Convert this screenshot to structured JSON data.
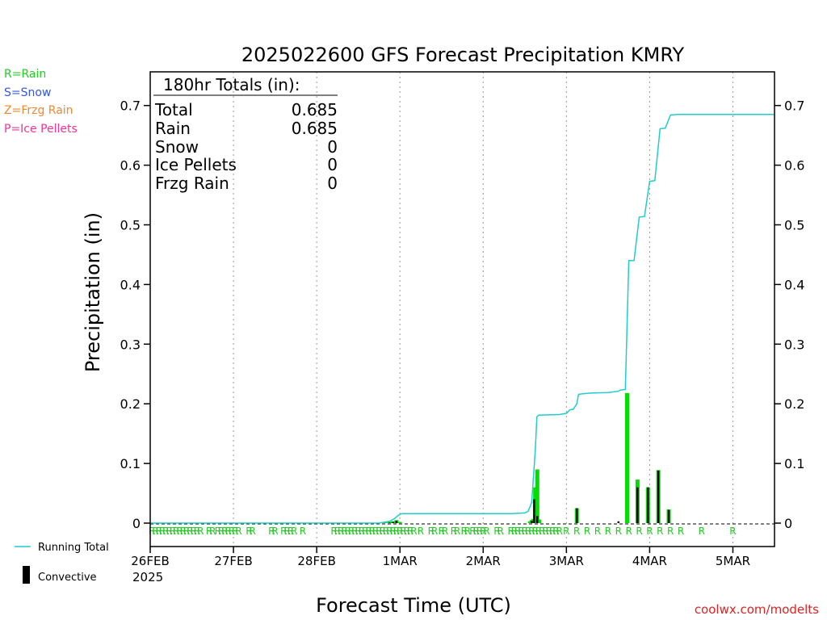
{
  "chart_data": {
    "type": "bar",
    "title": "2025022600 GFS Forecast Precipitation KMRY",
    "xlabel": "Forecast Time (UTC)",
    "ylabel": "Precipitation (in)",
    "ylim": [
      0,
      0.75
    ],
    "yticks": [
      "0",
      "0.1",
      "0.2",
      "0.3",
      "0.4",
      "0.5",
      "0.6",
      "0.7"
    ],
    "xticks": [
      {
        "label": "26FEB",
        "hour": 0
      },
      {
        "label": "27FEB",
        "hour": 24
      },
      {
        "label": "28FEB",
        "hour": 48
      },
      {
        "label": "1MAR",
        "hour": 72
      },
      {
        "label": "2MAR",
        "hour": 96
      },
      {
        "label": "3MAR",
        "hour": 120
      },
      {
        "label": "4MAR",
        "hour": 144
      },
      {
        "label": "5MAR",
        "hour": 168
      }
    ],
    "x_year_label": "2025",
    "xlim_hours": [
      0,
      180
    ],
    "grid": "vertical dotted",
    "ptype_legend": [
      {
        "code": "R",
        "text": "R=Rain",
        "color": "#22cc22"
      },
      {
        "code": "S",
        "text": "S=Snow",
        "color": "#3355ee"
      },
      {
        "code": "Z",
        "text": "Z=Frzg Rain",
        "color": "#ee8833"
      },
      {
        "code": "P",
        "text": "P=Ice Pellets",
        "color": "#ee3399"
      }
    ],
    "totals": {
      "header": "180hr Totals (in):",
      "rows": [
        {
          "label": "Total",
          "value": "0.685"
        },
        {
          "label": "Rain",
          "value": "0.685"
        },
        {
          "label": "Snow",
          "value": "0"
        },
        {
          "label": "Ice Pellets",
          "value": "0"
        },
        {
          "label": "Frzg Rain",
          "value": "0"
        }
      ]
    },
    "legend": [
      {
        "name": "Running Total",
        "color": "#22cccc"
      },
      {
        "name": "Convective",
        "color": "#000000"
      }
    ],
    "series": [
      {
        "name": "Running Total",
        "color": "#22cccc",
        "points": [
          [
            0,
            0
          ],
          [
            66,
            0
          ],
          [
            69,
            0.003
          ],
          [
            70.5,
            0.008
          ],
          [
            71.5,
            0.013
          ],
          [
            72.5,
            0.016
          ],
          [
            104,
            0.016
          ],
          [
            108,
            0.017
          ],
          [
            109,
            0.02
          ],
          [
            110,
            0.035
          ],
          [
            111,
            0.12
          ],
          [
            111.5,
            0.178
          ],
          [
            112,
            0.181
          ],
          [
            118,
            0.182
          ],
          [
            120,
            0.184
          ],
          [
            121,
            0.19
          ],
          [
            122,
            0.191
          ],
          [
            123,
            0.2
          ],
          [
            123.5,
            0.216
          ],
          [
            125,
            0.217
          ],
          [
            127,
            0.218
          ],
          [
            132,
            0.219
          ],
          [
            135,
            0.221
          ],
          [
            135.5,
            0.223
          ],
          [
            137,
            0.224
          ],
          [
            138,
            0.44
          ],
          [
            139.5,
            0.44
          ],
          [
            141,
            0.513
          ],
          [
            142.5,
            0.514
          ],
          [
            144,
            0.573
          ],
          [
            145.5,
            0.574
          ],
          [
            147,
            0.661
          ],
          [
            148.5,
            0.662
          ],
          [
            150,
            0.684
          ],
          [
            152,
            0.685
          ],
          [
            180,
            0.685
          ]
        ]
      },
      {
        "name": "Precipitation",
        "color": "#00dd00",
        "bars": [
          [
            68,
            0.001
          ],
          [
            69,
            0.002
          ],
          [
            70,
            0.003
          ],
          [
            71,
            0.005
          ],
          [
            72,
            0.002
          ],
          [
            109.5,
            0.003
          ],
          [
            110,
            0.005
          ],
          [
            110.5,
            0.007
          ],
          [
            111,
            0.06
          ],
          [
            111.6,
            0.09
          ],
          [
            112.2,
            0.006
          ],
          [
            123,
            0.025
          ],
          [
            137.5,
            0.218
          ],
          [
            140.5,
            0.073
          ],
          [
            143.5,
            0.06
          ],
          [
            146.5,
            0.089
          ],
          [
            149.5,
            0.023
          ]
        ]
      },
      {
        "name": "Convective",
        "color": "#000000",
        "bars": [
          [
            69,
            0.001
          ],
          [
            70,
            0.002
          ],
          [
            71,
            0.004
          ],
          [
            110,
            0.004
          ],
          [
            110.7,
            0.04
          ],
          [
            111.6,
            0.012
          ],
          [
            123,
            0.025
          ],
          [
            135,
            0.003
          ],
          [
            140.5,
            0.06
          ],
          [
            143.5,
            0.06
          ],
          [
            146.5,
            0.088
          ],
          [
            149.5,
            0.022
          ]
        ]
      }
    ],
    "ptype_row": {
      "code": "R",
      "color": "#22cc22",
      "hours": [
        0.5,
        1.5,
        2.5,
        3.5,
        4.5,
        5.5,
        6.5,
        7.5,
        8.5,
        9.5,
        10.5,
        11.5,
        12.5,
        13.5,
        14.5,
        17,
        18,
        19.5,
        20.5,
        21.5,
        22.5,
        23.5,
        24.5,
        25.5,
        28.5,
        29.5,
        35,
        36,
        38.5,
        39.5,
        40.5,
        41.5,
        44,
        53,
        54,
        55,
        56,
        57,
        58,
        59,
        60,
        61,
        62,
        63,
        64,
        65,
        66,
        67,
        68,
        69,
        70,
        71,
        72,
        73,
        74,
        75,
        76,
        78,
        81,
        82,
        84,
        85,
        87.5,
        88.5,
        90.5,
        91.5,
        93,
        94,
        95,
        96,
        97,
        100,
        101,
        104,
        105,
        106,
        107,
        108,
        109,
        110,
        111,
        112,
        113,
        114,
        115,
        116,
        117,
        118,
        120,
        123,
        126,
        129,
        132,
        135,
        138,
        141,
        144,
        147,
        150,
        153,
        159,
        168
      ]
    }
  },
  "branding": {
    "site": "coolwx.com/modelts"
  }
}
